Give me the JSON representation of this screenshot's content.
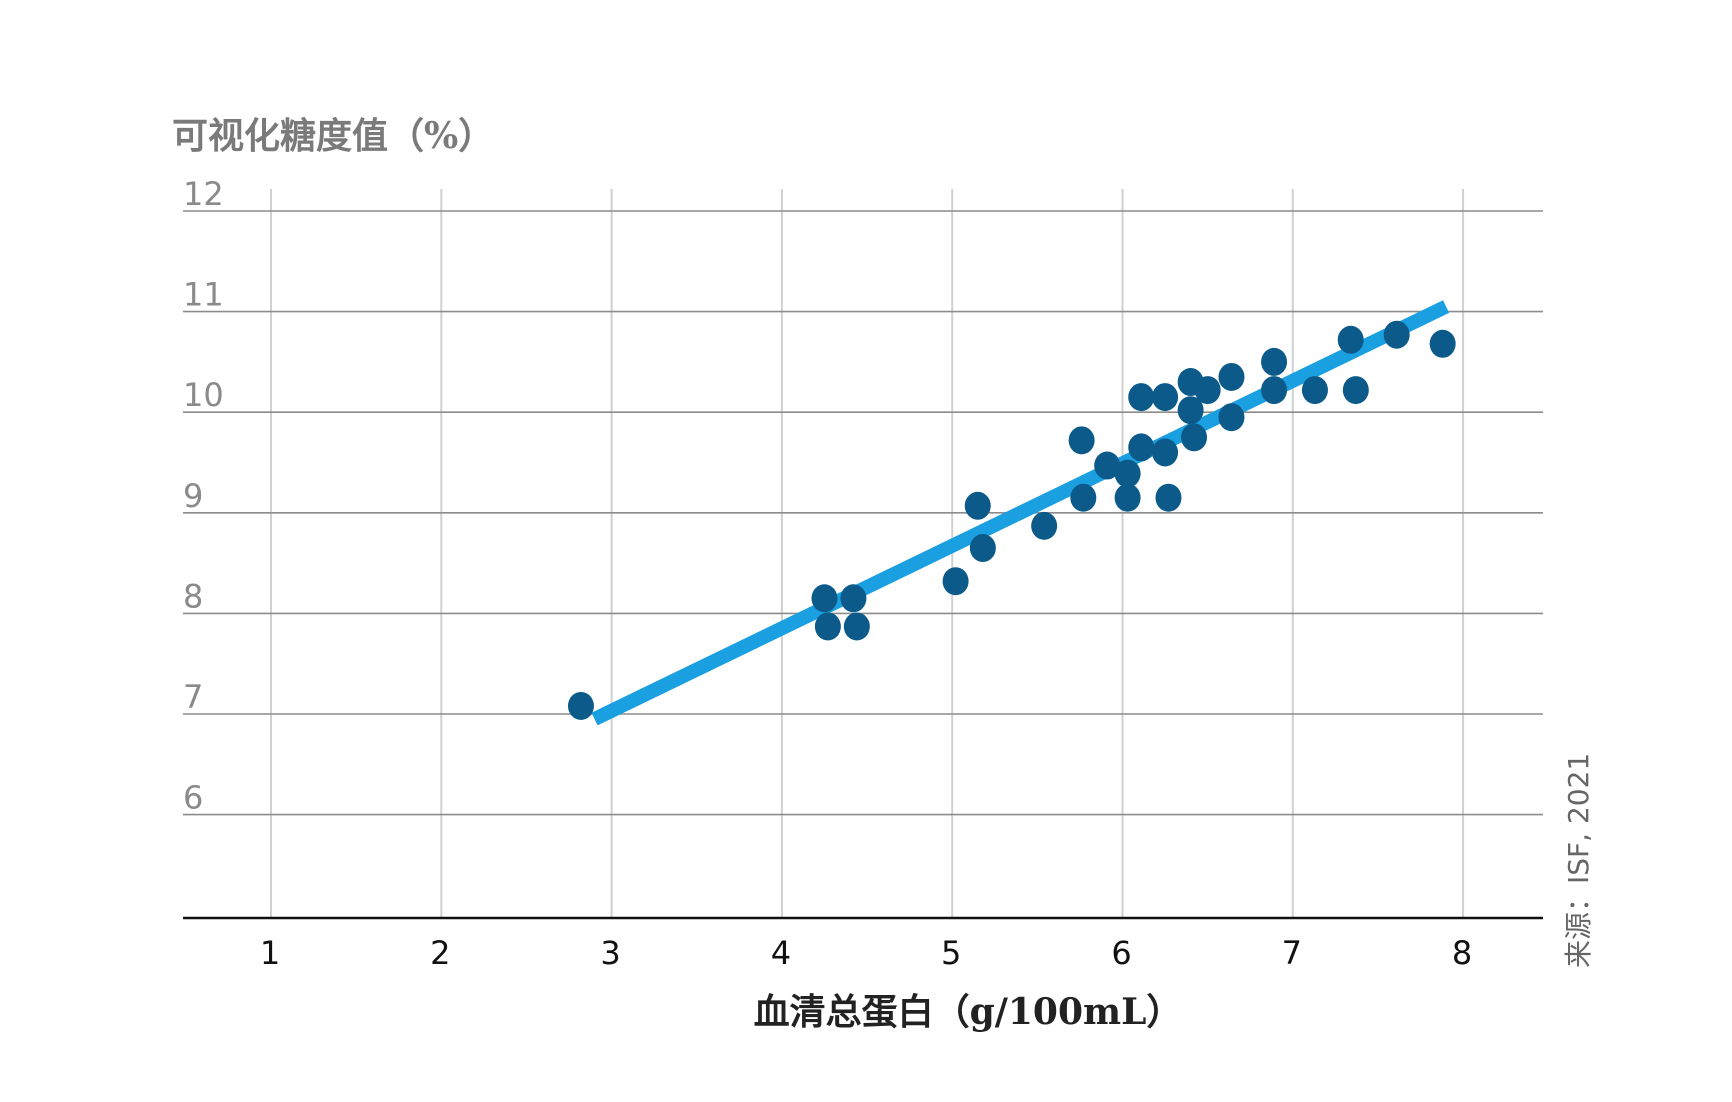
{
  "chart_data": {
    "type": "scatter",
    "ylabel": "可视化糖度值（%）",
    "xlabel": "血清总蛋白（g/100mL）",
    "source": "来源：ISF, 2021",
    "xlim": [
      0.5,
      8.5
    ],
    "ylim": [
      5,
      12
    ],
    "x_ticks": [
      "1",
      "2",
      "3",
      "4",
      "5",
      "6",
      "7",
      "8"
    ],
    "y_ticks": [
      "6",
      "7",
      "8",
      "9",
      "10",
      "11",
      "12"
    ],
    "grid": true,
    "colors": {
      "points": "#0b5a8a",
      "trend": "#1a9fe0",
      "grid_h": "#8c8c8c",
      "grid_v": "#d0d0d0",
      "axis": "#111111"
    },
    "trendline": {
      "x": [
        2.9,
        7.9
      ],
      "y": [
        6.95,
        11.05
      ]
    },
    "points": [
      {
        "x": 2.82,
        "y": 7.08
      },
      {
        "x": 4.25,
        "y": 8.15
      },
      {
        "x": 4.42,
        "y": 8.15
      },
      {
        "x": 4.27,
        "y": 7.87
      },
      {
        "x": 4.44,
        "y": 7.87
      },
      {
        "x": 5.02,
        "y": 8.32
      },
      {
        "x": 5.15,
        "y": 9.07
      },
      {
        "x": 5.18,
        "y": 8.65
      },
      {
        "x": 5.54,
        "y": 8.87
      },
      {
        "x": 5.76,
        "y": 9.72
      },
      {
        "x": 5.77,
        "y": 9.15
      },
      {
        "x": 5.91,
        "y": 9.47
      },
      {
        "x": 6.03,
        "y": 9.39
      },
      {
        "x": 6.03,
        "y": 9.15
      },
      {
        "x": 6.11,
        "y": 9.65
      },
      {
        "x": 6.11,
        "y": 10.15
      },
      {
        "x": 6.25,
        "y": 10.15
      },
      {
        "x": 6.25,
        "y": 9.6
      },
      {
        "x": 6.27,
        "y": 9.15
      },
      {
        "x": 6.4,
        "y": 10.3
      },
      {
        "x": 6.4,
        "y": 10.02
      },
      {
        "x": 6.42,
        "y": 9.75
      },
      {
        "x": 6.5,
        "y": 10.22
      },
      {
        "x": 6.64,
        "y": 10.35
      },
      {
        "x": 6.64,
        "y": 9.95
      },
      {
        "x": 6.89,
        "y": 10.5
      },
      {
        "x": 6.89,
        "y": 10.22
      },
      {
        "x": 7.13,
        "y": 10.22
      },
      {
        "x": 7.34,
        "y": 10.72
      },
      {
        "x": 7.37,
        "y": 10.22
      },
      {
        "x": 7.61,
        "y": 10.77
      },
      {
        "x": 7.88,
        "y": 10.68
      }
    ]
  }
}
